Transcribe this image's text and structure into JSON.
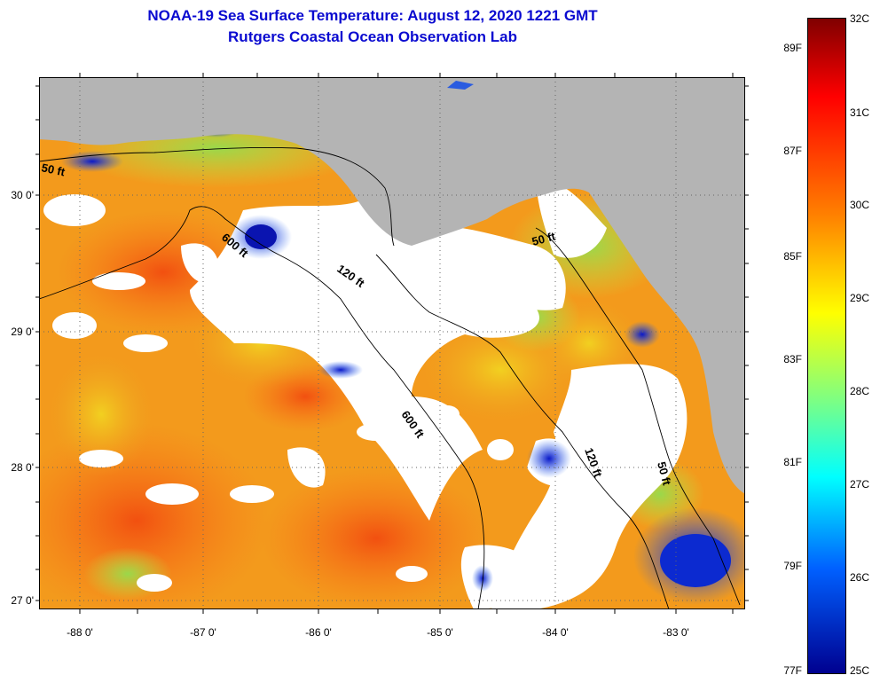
{
  "title": "NOAA-19 Sea Surface Temperature:  August 12, 2020 1221 GMT",
  "subtitle": "Rutgers Coastal Ocean Observation Lab",
  "lat_ticks": [
    "30 0'",
    "29 0'",
    "28 0'",
    "27 0'"
  ],
  "lon_ticks": [
    "-88 0'",
    "-87 0'",
    "-86 0'",
    "-85 0'",
    "-84 0'",
    "-83 0'"
  ],
  "contours": [
    "50 ft",
    "600 ft",
    "120 ft",
    "50 ft",
    "600 ft",
    "120 ft",
    "50 ft"
  ],
  "colorbar": {
    "c_labels": [
      "32C",
      "31C",
      "30C",
      "29C",
      "28C",
      "27C",
      "26C",
      "25C"
    ],
    "f_labels": [
      "89F",
      "87F",
      "85F",
      "83F",
      "81F",
      "79F",
      "77F"
    ]
  },
  "colors": {
    "title": "#0a0ad0",
    "land": "#b4b4b4",
    "cloud": "#ffffff"
  }
}
